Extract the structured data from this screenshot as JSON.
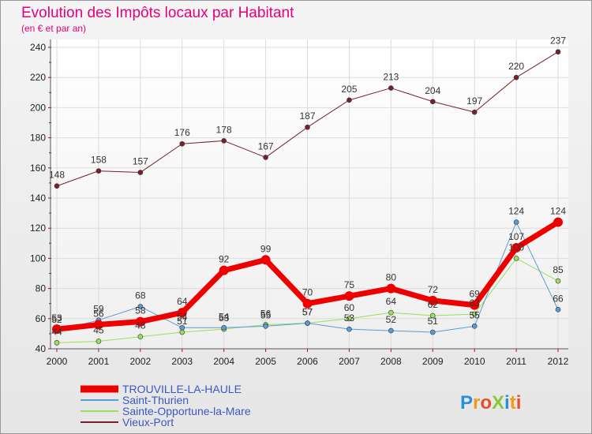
{
  "chart_data": {
    "type": "line",
    "title": "Evolution des Impôts locaux par Habitant",
    "subtitle": "(en € et par an)",
    "categories": [
      "2000",
      "2001",
      "2002",
      "2003",
      "2004",
      "2005",
      "2006",
      "2007",
      "2008",
      "2009",
      "2010",
      "2011",
      "2012"
    ],
    "ylim": [
      40,
      240
    ],
    "yticks": [
      40,
      60,
      80,
      100,
      120,
      140,
      160,
      180,
      200,
      220,
      240
    ],
    "series": [
      {
        "name": "TROUVILLE-LA-HAULE",
        "color": "#ee0000",
        "values": [
          53,
          56,
          58,
          64,
          92,
          99,
          70,
          75,
          80,
          72,
          69,
          107,
          124
        ],
        "labels": [
          "53",
          "56",
          "58",
          "64",
          "92",
          "99",
          "70",
          "75",
          "80",
          "72",
          "69",
          "107",
          "124"
        ]
      },
      {
        "name": "Saint-Thurien",
        "color": "#5b9bd5",
        "values": [
          52,
          59,
          68,
          54,
          54,
          55,
          57,
          53,
          52,
          51,
          55,
          124,
          66
        ],
        "labels": [
          "52",
          "59",
          "68",
          "54",
          "54",
          "55",
          "57",
          "53",
          "52",
          "51",
          "55",
          "124",
          "66"
        ]
      },
      {
        "name": "Sainte-Opportune-la-Mare",
        "color": "#99e05c",
        "values": [
          44,
          45,
          48,
          51,
          53,
          56,
          57,
          60,
          64,
          62,
          63,
          100,
          85
        ],
        "labels": [
          "44",
          "45",
          "48",
          "51",
          "53",
          "56",
          "57",
          "60",
          "64",
          "62",
          "63",
          "100",
          "85"
        ]
      },
      {
        "name": "Vieux-Port",
        "color": "#7a1f2b",
        "values": [
          148,
          158,
          157,
          176,
          178,
          167,
          187,
          205,
          213,
          204,
          197,
          220,
          237
        ],
        "labels": [
          "148",
          "158",
          "157",
          "176",
          "178",
          "167",
          "187",
          "205",
          "213",
          "204",
          "197",
          "220",
          "237"
        ]
      }
    ]
  },
  "brand": {
    "logo_text": "ProXiti"
  }
}
